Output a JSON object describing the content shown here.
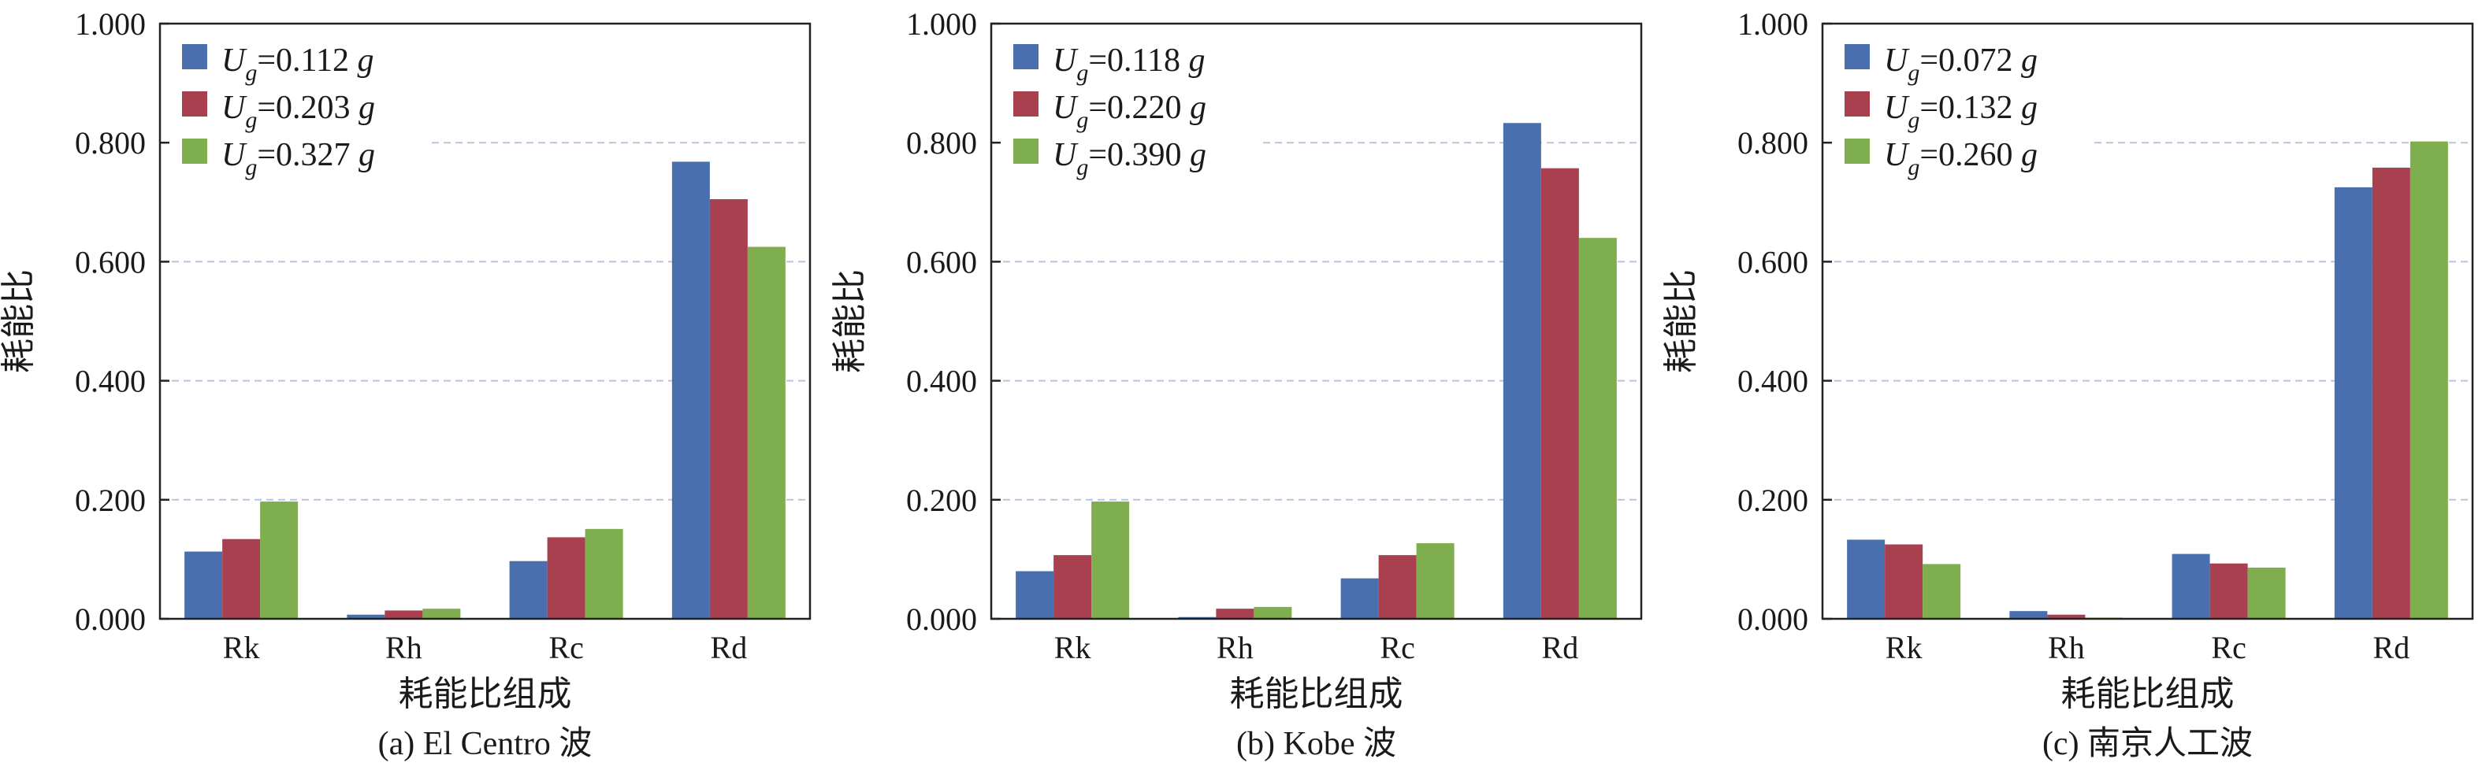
{
  "colors": {
    "series": [
      "#4a6fae",
      "#a8404f",
      "#7fae4f"
    ],
    "grid": "#b8c4dc",
    "axis": "#222222"
  },
  "chart_data": [
    {
      "type": "bar",
      "categories": [
        "Rk",
        "Rh",
        "Rc",
        "Rd"
      ],
      "series": [
        {
          "name": "Ug=0.112 g",
          "sym": "U",
          "sub": "g",
          "val": "=0.112 ",
          "unit": "g",
          "values": [
            0.113,
            0.007,
            0.097,
            0.768
          ]
        },
        {
          "name": "Ug=0.203 g",
          "sym": "U",
          "sub": "g",
          "val": "=0.203 ",
          "unit": "g",
          "values": [
            0.134,
            0.014,
            0.137,
            0.705
          ]
        },
        {
          "name": "Ug=0.327 g",
          "sym": "U",
          "sub": "g",
          "val": "=0.327 ",
          "unit": "g",
          "values": [
            0.197,
            0.017,
            0.151,
            0.625
          ]
        }
      ],
      "ylabel": "耗能比",
      "xlabel": "耗能比组成",
      "caption": "(a) El Centro 波",
      "yticks": [
        "0.000",
        "0.200",
        "0.400",
        "0.600",
        "0.800",
        "1.000"
      ],
      "ylim": [
        0,
        1
      ],
      "grid": true,
      "legend": "top-left"
    },
    {
      "type": "bar",
      "categories": [
        "Rk",
        "Rh",
        "Rc",
        "Rd"
      ],
      "series": [
        {
          "name": "Ug=0.118 g",
          "sym": "U",
          "sub": "g",
          "val": "=0.118 ",
          "unit": "g",
          "values": [
            0.08,
            0.003,
            0.068,
            0.833
          ]
        },
        {
          "name": "Ug=0.220 g",
          "sym": "U",
          "sub": "g",
          "val": "=0.220 ",
          "unit": "g",
          "values": [
            0.107,
            0.017,
            0.107,
            0.757
          ]
        },
        {
          "name": "Ug=0.390 g",
          "sym": "U",
          "sub": "g",
          "val": "=0.390 ",
          "unit": "g",
          "values": [
            0.197,
            0.02,
            0.127,
            0.64
          ]
        }
      ],
      "ylabel": "耗能比",
      "xlabel": "耗能比组成",
      "caption": "(b) Kobe 波",
      "yticks": [
        "0.000",
        "0.200",
        "0.400",
        "0.600",
        "0.800",
        "1.000"
      ],
      "ylim": [
        0,
        1
      ],
      "grid": true,
      "legend": "top-left"
    },
    {
      "type": "bar",
      "categories": [
        "Rk",
        "Rh",
        "Rc",
        "Rd"
      ],
      "series": [
        {
          "name": "Ug=0.072 g",
          "sym": "U",
          "sub": "g",
          "val": "=0.072 ",
          "unit": "g",
          "values": [
            0.133,
            0.013,
            0.109,
            0.725
          ]
        },
        {
          "name": "Ug=0.132 g",
          "sym": "U",
          "sub": "g",
          "val": "=0.132 ",
          "unit": "g",
          "values": [
            0.125,
            0.007,
            0.093,
            0.758
          ]
        },
        {
          "name": "Ug=0.260 g",
          "sym": "U",
          "sub": "g",
          "val": "=0.260 ",
          "unit": "g",
          "values": [
            0.092,
            0.002,
            0.086,
            0.802
          ]
        }
      ],
      "ylabel": "耗能比",
      "xlabel": "耗能比组成",
      "caption": "(c) 南京人工波",
      "yticks": [
        "0.000",
        "0.200",
        "0.400",
        "0.600",
        "0.800",
        "1.000"
      ],
      "ylim": [
        0,
        1
      ],
      "grid": true,
      "legend": "top-left"
    }
  ]
}
